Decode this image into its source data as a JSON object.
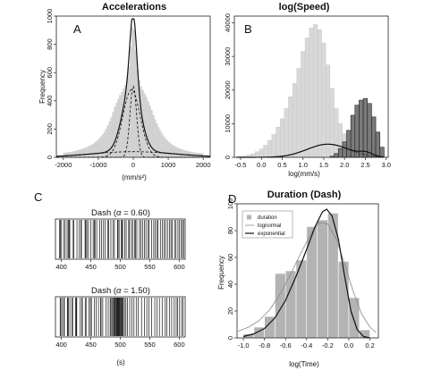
{
  "chart_data": [
    {
      "panel": "A",
      "type": "bar",
      "title": "Accelerations",
      "xlabel": "(mm/s²)",
      "ylabel": "Frequency",
      "xlim": [
        -2200,
        2200
      ],
      "ylim": [
        0,
        1000
      ],
      "xticks": [
        -2000,
        -1000,
        0,
        1000,
        2000
      ],
      "yticks": [
        0,
        200,
        400,
        600,
        800,
        1000
      ],
      "bin_width": 50,
      "histogram": {
        "centers": [
          -1975,
          -1925,
          -1875,
          -1825,
          -1775,
          -1725,
          -1675,
          -1625,
          -1575,
          -1525,
          -1475,
          -1425,
          -1375,
          -1325,
          -1275,
          -1225,
          -1175,
          -1125,
          -1075,
          -1025,
          -975,
          -925,
          -875,
          -825,
          -775,
          -725,
          -675,
          -625,
          -575,
          -525,
          -475,
          -425,
          -375,
          -325,
          -275,
          -225,
          -175,
          -125,
          -75,
          -25,
          25,
          75,
          125,
          175,
          225,
          275,
          325,
          375,
          425,
          475,
          525,
          575,
          625,
          675,
          725,
          775,
          825,
          875,
          925,
          975,
          1025,
          1075,
          1125,
          1175,
          1225,
          1275,
          1325,
          1375,
          1425,
          1475,
          1525,
          1575,
          1625,
          1675,
          1725,
          1775,
          1825,
          1875,
          1925,
          1975
        ],
        "counts": [
          30,
          32,
          34,
          36,
          38,
          40,
          43,
          46,
          49,
          53,
          57,
          61,
          66,
          71,
          77,
          83,
          90,
          98,
          108,
          118,
          130,
          144,
          160,
          178,
          200,
          225,
          255,
          285,
          320,
          355,
          385,
          415,
          440,
          460,
          485,
          510,
          560,
          640,
          780,
          920,
          900,
          760,
          620,
          545,
          500,
          475,
          450,
          425,
          395,
          365,
          335,
          300,
          268,
          240,
          212,
          188,
          166,
          148,
          132,
          118,
          106,
          96,
          87,
          79,
          72,
          66,
          61,
          56,
          52,
          48,
          45,
          42,
          39,
          37,
          35,
          33,
          31,
          30,
          29,
          28
        ]
      },
      "fitted_curves": [
        {
          "style": "solid",
          "components": [
            {
              "weight": 120000,
              "mean": 0,
              "sd": 95
            },
            {
              "weight": 300000,
              "mean": -50,
              "sd": 250
            },
            {
              "weight": 120000,
              "mean": 0,
              "sd": 1200
            }
          ]
        },
        {
          "style": "dashed",
          "components": [
            {
              "weight": 120000,
              "mean": 0,
              "sd": 95
            }
          ]
        },
        {
          "style": "dashed",
          "components": [
            {
              "weight": 300000,
              "mean": -50,
              "sd": 250
            }
          ]
        },
        {
          "style": "dashed",
          "components": [
            {
              "weight": 120000,
              "mean": 0,
              "sd": 1200
            }
          ]
        }
      ]
    },
    {
      "panel": "B",
      "type": "bar",
      "title": "log(Speed)",
      "xlabel": "log(mm/s)",
      "ylabel": "",
      "xlim": [
        -0.65,
        3.05
      ],
      "ylim": [
        0,
        42000
      ],
      "xticks": [
        -0.5,
        0.0,
        0.5,
        1.0,
        1.5,
        2.0,
        2.5,
        3.0
      ],
      "xtick_labels": [
        "-0.5",
        "0.0",
        "0.5",
        "1.0",
        "1.5",
        "2.0",
        "2.5",
        "3.0"
      ],
      "yticks": [
        0,
        10000,
        20000,
        30000,
        40000
      ],
      "bin_width": 0.1,
      "series": [
        {
          "fill": "light",
          "x_start": -0.55,
          "counts": [
            300,
            400,
            700,
            1100,
            1700,
            2500,
            3600,
            5000,
            6800,
            9000,
            11500,
            14500,
            18000,
            22000,
            26500,
            31500,
            35500,
            38500,
            39500,
            38000,
            34000,
            27500,
            20500,
            14500,
            10000,
            7000,
            4500,
            2500,
            1200,
            500
          ]
        },
        {
          "fill": "dark",
          "x_start": 1.65,
          "counts": [
            300,
            1100,
            2600,
            4600,
            8000,
            12500,
            15500,
            17000,
            17500,
            16000,
            12000,
            7500,
            3000
          ]
        }
      ],
      "fitted_curves": [
        {
          "style": "solid",
          "components": [
            {
              "weight": 4900,
              "mean": 1.6,
              "sd": 0.5
            },
            {
              "weight": 380,
              "mean": 2.52,
              "sd": 0.155
            }
          ]
        },
        {
          "style": "dotted",
          "components": [
            {
              "weight": 4900,
              "mean": 1.6,
              "sd": 0.5
            }
          ]
        }
      ]
    },
    {
      "panel": "C",
      "type": "raster",
      "xlim": [
        390,
        610
      ],
      "xticks": [
        400,
        450,
        500,
        550,
        600
      ],
      "xlabel": "(s)",
      "rasters": [
        {
          "title_prefix": "Dash (",
          "alpha_symbol": "α",
          "title_suffix": " = 0.60)",
          "events": [
            397.0,
            398.5,
            400.2,
            404.0,
            406.5,
            409.8,
            412.0,
            413.1,
            414.3,
            420.0,
            421.2,
            426.5,
            430.0,
            433.1,
            434.0,
            440.2,
            441.5,
            443.3,
            446.0,
            450.2,
            454.0,
            455.8,
            457.1,
            460.0,
            465.2,
            468.0,
            471.5,
            474.0,
            478.8,
            480.1,
            484.0,
            487.5,
            490.0,
            495.2,
            496.1,
            498.0,
            501.5,
            502.8,
            504.0,
            507.6,
            510.0,
            514.2,
            515.5,
            518.8,
            521.0,
            524.4,
            525.6,
            528.0,
            532.5,
            535.0,
            538.1,
            541.0,
            543.5,
            547.1,
            549.0,
            553.2,
            556.7,
            559.0,
            562.3,
            564.1,
            568.0,
            571.5,
            574.2,
            576.8,
            580.0,
            583.3,
            585.9,
            588.2,
            592.0,
            594.4,
            597.7,
            600.1,
            603.0,
            605.5,
            607.3
          ]
        },
        {
          "title_prefix": "Dash (",
          "alpha_symbol": "α",
          "title_suffix": " = 1.50)",
          "events": [
            398.0,
            399.1,
            401.5,
            404.2,
            405.0,
            410.2,
            411.0,
            411.9,
            414.5,
            418.0,
            419.1,
            424.0,
            425.2,
            426.1,
            432.0,
            434.8,
            435.6,
            440.5,
            442.0,
            447.1,
            449.3,
            451.0,
            456.2,
            458.9,
            463.0,
            466.5,
            467.4,
            470.2,
            476.0,
            479.5,
            482.8,
            484.2,
            486.0,
            488.1,
            489.3,
            490.6,
            491.2,
            492.0,
            493.5,
            494.1,
            495.0,
            495.8,
            496.5,
            497.4,
            498.3,
            499.2,
            500.0,
            501.1,
            502.4,
            503.6,
            505.0,
            507.0,
            509.5,
            512.2,
            516.0,
            519.5,
            523.1,
            527.0,
            530.3,
            536.0,
            541.2,
            545.0,
            548.7,
            553.1,
            558.5,
            562.0,
            566.3,
            571.0,
            576.2,
            579.0,
            583.6,
            587.1,
            591.4,
            594.8,
            597.2,
            600.5,
            604.0,
            606.5
          ]
        }
      ]
    },
    {
      "panel": "D",
      "type": "bar",
      "title": "Duration (Dash)",
      "xlabel": "log(Time)",
      "ylabel": "Frequency",
      "xlim": [
        -1.06,
        0.28
      ],
      "ylim": [
        0,
        100
      ],
      "xticks": [
        -1.0,
        -0.8,
        -0.6,
        -0.4,
        -0.2,
        0.0,
        0.2
      ],
      "xtick_labels": [
        "-1.0",
        "-0.8",
        "-0.6",
        "-0.4",
        "-0.2",
        "0.0",
        "0.2"
      ],
      "yticks": [
        0,
        20,
        40,
        60,
        80,
        100
      ],
      "bin_width": 0.1,
      "histogram": {
        "left_edges": [
          -1.0,
          -0.9,
          -0.8,
          -0.7,
          -0.6,
          -0.5,
          -0.4,
          -0.3,
          -0.2,
          -0.1,
          0.0,
          0.1
        ],
        "counts": [
          3,
          8,
          16,
          48,
          50,
          58,
          83,
          88,
          93,
          57,
          30,
          6
        ]
      },
      "legend": {
        "position": "top-left",
        "entries": [
          "duration",
          "lognormal",
          "exponential"
        ]
      },
      "fitted_curves": [
        {
          "name": "lognormal",
          "style": "thin",
          "color": "#888888",
          "points": [
            [
              -1.05,
              5
            ],
            [
              -0.95,
              8
            ],
            [
              -0.85,
              13
            ],
            [
              -0.75,
              21
            ],
            [
              -0.65,
              33
            ],
            [
              -0.55,
              48
            ],
            [
              -0.45,
              64
            ],
            [
              -0.35,
              79
            ],
            [
              -0.28,
              86
            ],
            [
              -0.2,
              85
            ],
            [
              -0.12,
              74
            ],
            [
              -0.04,
              55
            ],
            [
              0.04,
              35
            ],
            [
              0.12,
              18
            ],
            [
              0.2,
              8
            ],
            [
              0.26,
              4
            ]
          ]
        },
        {
          "name": "exponential",
          "style": "solid",
          "color": "#111111",
          "points": [
            [
              -1.0,
              1
            ],
            [
              -0.9,
              3
            ],
            [
              -0.8,
              7
            ],
            [
              -0.7,
              15
            ],
            [
              -0.6,
              28
            ],
            [
              -0.5,
              46
            ],
            [
              -0.4,
              66
            ],
            [
              -0.32,
              83
            ],
            [
              -0.25,
              94
            ],
            [
              -0.21,
              96
            ],
            [
              -0.16,
              91
            ],
            [
              -0.1,
              74
            ],
            [
              -0.04,
              46
            ],
            [
              0.02,
              20
            ],
            [
              0.08,
              6
            ],
            [
              0.14,
              1
            ],
            [
              0.2,
              0
            ]
          ]
        }
      ]
    }
  ]
}
